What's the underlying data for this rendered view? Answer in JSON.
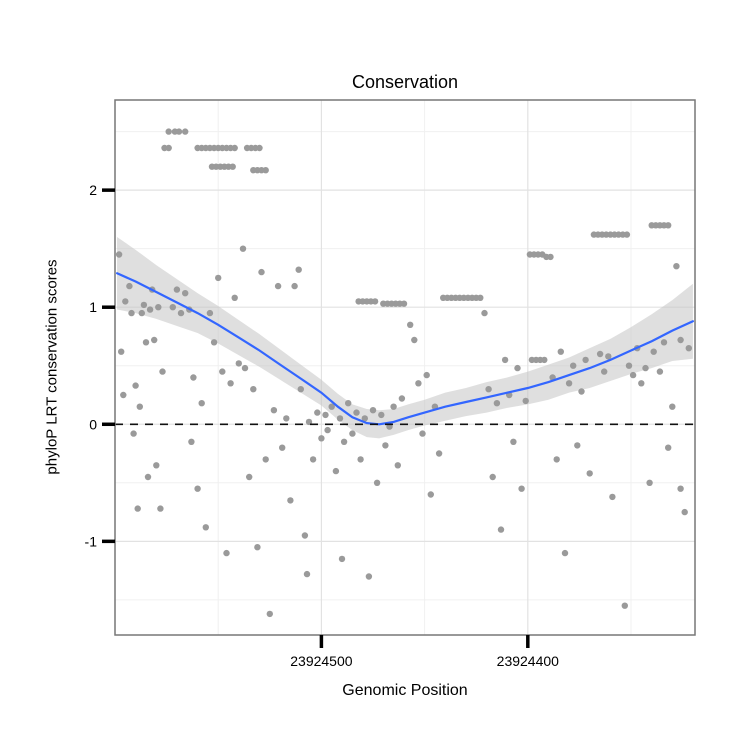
{
  "chart_data": {
    "type": "scatter",
    "title": "Conservation",
    "xlabel": "Genomic Position",
    "ylabel": "phyloP LRT conservation scores",
    "point_color": "#9a9a9a",
    "panel_border_color": "#777777",
    "background_color": "#ffffff",
    "x_axis": {
      "reversed": true,
      "domain": [
        23924319,
        23924600
      ],
      "ticks": [
        {
          "value": 23924500,
          "label": "23924500"
        },
        {
          "value": 23924400,
          "label": "23924400"
        }
      ],
      "minor": [
        23924550,
        23924450,
        23924350
      ]
    },
    "y_axis": {
      "domain": [
        -1.8,
        2.77
      ],
      "ticks": [
        {
          "value": -1,
          "label": "-1"
        },
        {
          "value": 0,
          "label": "0"
        },
        {
          "value": 1,
          "label": "1"
        },
        {
          "value": 2,
          "label": "2"
        }
      ],
      "minor": [
        -1.5,
        -0.5,
        0.5,
        1.5,
        2.5
      ]
    },
    "grid": {
      "major_color": "#e2e2e2",
      "minor_color": "#f0f0f0"
    },
    "reference_line": {
      "y": 0,
      "style": "dashed",
      "color": "#111111"
    },
    "smooth": {
      "line_color": "#3366FF",
      "ribbon_color": "#c4c4c4",
      "ribbon_opacity": 0.55,
      "x": [
        23924599,
        23924590,
        23924580,
        23924570,
        23924560,
        23924550,
        23924540,
        23924530,
        23924520,
        23924510,
        23924500,
        23924492,
        23924485,
        23924478,
        23924472,
        23924465,
        23924458,
        23924450,
        23924440,
        23924430,
        23924420,
        23924410,
        23924400,
        23924390,
        23924380,
        23924370,
        23924360,
        23924350,
        23924340,
        23924330,
        23924320
      ],
      "y": [
        1.29,
        1.22,
        1.13,
        1.04,
        0.95,
        0.85,
        0.74,
        0.63,
        0.51,
        0.39,
        0.27,
        0.15,
        0.06,
        0.01,
        0.0,
        0.02,
        0.06,
        0.1,
        0.15,
        0.19,
        0.23,
        0.27,
        0.31,
        0.36,
        0.42,
        0.48,
        0.55,
        0.63,
        0.71,
        0.8,
        0.88
      ],
      "upper": [
        1.6,
        1.49,
        1.36,
        1.24,
        1.12,
        1.01,
        0.89,
        0.77,
        0.64,
        0.51,
        0.38,
        0.26,
        0.17,
        0.13,
        0.12,
        0.13,
        0.17,
        0.21,
        0.27,
        0.31,
        0.36,
        0.4,
        0.45,
        0.51,
        0.57,
        0.65,
        0.73,
        0.83,
        0.94,
        1.06,
        1.2
      ],
      "lower": [
        0.98,
        0.95,
        0.9,
        0.84,
        0.78,
        0.69,
        0.59,
        0.49,
        0.38,
        0.27,
        0.16,
        0.04,
        -0.05,
        -0.11,
        -0.12,
        -0.09,
        -0.05,
        -0.01,
        0.03,
        0.07,
        0.1,
        0.14,
        0.17,
        0.21,
        0.27,
        0.31,
        0.37,
        0.43,
        0.48,
        0.54,
        0.56
      ]
    },
    "points": [
      [
        23924598,
        1.45
      ],
      [
        23924597,
        0.62
      ],
      [
        23924596,
        0.25
      ],
      [
        23924595,
        1.05
      ],
      [
        23924593,
        1.18
      ],
      [
        23924592,
        0.95
      ],
      [
        23924591,
        -0.08
      ],
      [
        23924590,
        0.33
      ],
      [
        23924589,
        -0.72
      ],
      [
        23924588,
        0.15
      ],
      [
        23924587,
        0.95
      ],
      [
        23924586,
        1.02
      ],
      [
        23924585,
        0.7
      ],
      [
        23924584,
        -0.45
      ],
      [
        23924583,
        0.98
      ],
      [
        23924582,
        1.15
      ],
      [
        23924581,
        0.72
      ],
      [
        23924580,
        -0.35
      ],
      [
        23924579,
        1.0
      ],
      [
        23924578,
        -0.72
      ],
      [
        23924577,
        0.45
      ],
      [
        23924574,
        2.5
      ],
      [
        23924571,
        2.5
      ],
      [
        23924569,
        2.5
      ],
      [
        23924566,
        2.5
      ],
      [
        23924576,
        2.36
      ],
      [
        23924574,
        2.36
      ],
      [
        23924560,
        2.36
      ],
      [
        23924558,
        2.36
      ],
      [
        23924556,
        2.36
      ],
      [
        23924554,
        2.36
      ],
      [
        23924552,
        2.36
      ],
      [
        23924550,
        2.36
      ],
      [
        23924548,
        2.36
      ],
      [
        23924546,
        2.36
      ],
      [
        23924544,
        2.36
      ],
      [
        23924542,
        2.36
      ],
      [
        23924536,
        2.36
      ],
      [
        23924534,
        2.36
      ],
      [
        23924532,
        2.36
      ],
      [
        23924530,
        2.36
      ],
      [
        23924553,
        2.2
      ],
      [
        23924551,
        2.2
      ],
      [
        23924549,
        2.2
      ],
      [
        23924547,
        2.2
      ],
      [
        23924545,
        2.2
      ],
      [
        23924543,
        2.2
      ],
      [
        23924533,
        2.17
      ],
      [
        23924531,
        2.17
      ],
      [
        23924529,
        2.17
      ],
      [
        23924527,
        2.17
      ],
      [
        23924572,
        1.0
      ],
      [
        23924570,
        1.15
      ],
      [
        23924568,
        0.95
      ],
      [
        23924566,
        1.12
      ],
      [
        23924564,
        0.98
      ],
      [
        23924563,
        -0.15
      ],
      [
        23924562,
        0.4
      ],
      [
        23924560,
        -0.55
      ],
      [
        23924558,
        0.18
      ],
      [
        23924556,
        -0.88
      ],
      [
        23924554,
        0.95
      ],
      [
        23924552,
        0.7
      ],
      [
        23924550,
        1.25
      ],
      [
        23924548,
        0.45
      ],
      [
        23924546,
        -1.1
      ],
      [
        23924544,
        0.35
      ],
      [
        23924542,
        1.08
      ],
      [
        23924540,
        0.52
      ],
      [
        23924538,
        1.5
      ],
      [
        23924537,
        0.48
      ],
      [
        23924535,
        -0.45
      ],
      [
        23924533,
        0.3
      ],
      [
        23924531,
        -1.05
      ],
      [
        23924529,
        1.3
      ],
      [
        23924527,
        -0.3
      ],
      [
        23924525,
        -1.62
      ],
      [
        23924523,
        0.12
      ],
      [
        23924521,
        1.18
      ],
      [
        23924519,
        -0.2
      ],
      [
        23924517,
        0.05
      ],
      [
        23924515,
        -0.65
      ],
      [
        23924513,
        1.18
      ],
      [
        23924511,
        1.32
      ],
      [
        23924510,
        0.3
      ],
      [
        23924508,
        -0.95
      ],
      [
        23924507,
        -1.28
      ],
      [
        23924506,
        0.02
      ],
      [
        23924504,
        -0.3
      ],
      [
        23924502,
        0.1
      ],
      [
        23924500,
        -0.12
      ],
      [
        23924498,
        0.08
      ],
      [
        23924497,
        -0.05
      ],
      [
        23924495,
        0.15
      ],
      [
        23924493,
        -0.4
      ],
      [
        23924491,
        0.05
      ],
      [
        23924490,
        -1.15
      ],
      [
        23924489,
        -0.15
      ],
      [
        23924487,
        0.18
      ],
      [
        23924485,
        -0.08
      ],
      [
        23924483,
        0.1
      ],
      [
        23924481,
        -0.3
      ],
      [
        23924479,
        0.05
      ],
      [
        23924477,
        -1.3
      ],
      [
        23924475,
        0.12
      ],
      [
        23924473,
        -0.5
      ],
      [
        23924471,
        0.08
      ],
      [
        23924469,
        -0.18
      ],
      [
        23924467,
        -0.02
      ],
      [
        23924465,
        0.15
      ],
      [
        23924463,
        -0.35
      ],
      [
        23924461,
        0.22
      ],
      [
        23924482,
        1.05
      ],
      [
        23924480,
        1.05
      ],
      [
        23924478,
        1.05
      ],
      [
        23924476,
        1.05
      ],
      [
        23924474,
        1.05
      ],
      [
        23924470,
        1.03
      ],
      [
        23924468,
        1.03
      ],
      [
        23924466,
        1.03
      ],
      [
        23924464,
        1.03
      ],
      [
        23924462,
        1.03
      ],
      [
        23924460,
        1.03
      ],
      [
        23924457,
        0.85
      ],
      [
        23924455,
        0.72
      ],
      [
        23924453,
        0.35
      ],
      [
        23924451,
        -0.08
      ],
      [
        23924449,
        0.42
      ],
      [
        23924447,
        -0.6
      ],
      [
        23924445,
        0.15
      ],
      [
        23924443,
        -0.25
      ],
      [
        23924441,
        1.08
      ],
      [
        23924439,
        1.08
      ],
      [
        23924437,
        1.08
      ],
      [
        23924435,
        1.08
      ],
      [
        23924433,
        1.08
      ],
      [
        23924431,
        1.08
      ],
      [
        23924429,
        1.08
      ],
      [
        23924427,
        1.08
      ],
      [
        23924425,
        1.08
      ],
      [
        23924423,
        1.08
      ],
      [
        23924421,
        0.95
      ],
      [
        23924419,
        0.3
      ],
      [
        23924417,
        -0.45
      ],
      [
        23924415,
        0.18
      ],
      [
        23924413,
        -0.9
      ],
      [
        23924411,
        0.55
      ],
      [
        23924409,
        0.25
      ],
      [
        23924407,
        -0.15
      ],
      [
        23924405,
        0.48
      ],
      [
        23924403,
        -0.55
      ],
      [
        23924401,
        0.2
      ],
      [
        23924399,
        1.45
      ],
      [
        23924397,
        1.45
      ],
      [
        23924395,
        1.45
      ],
      [
        23924393,
        1.45
      ],
      [
        23924391,
        1.43
      ],
      [
        23924389,
        1.43
      ],
      [
        23924398,
        0.55
      ],
      [
        23924396,
        0.55
      ],
      [
        23924394,
        0.55
      ],
      [
        23924392,
        0.55
      ],
      [
        23924388,
        0.4
      ],
      [
        23924386,
        -0.3
      ],
      [
        23924384,
        0.62
      ],
      [
        23924382,
        -1.1
      ],
      [
        23924380,
        0.35
      ],
      [
        23924378,
        0.5
      ],
      [
        23924376,
        -0.18
      ],
      [
        23924374,
        0.28
      ],
      [
        23924372,
        0.55
      ],
      [
        23924370,
        -0.42
      ],
      [
        23924368,
        1.62
      ],
      [
        23924366,
        1.62
      ],
      [
        23924364,
        1.62
      ],
      [
        23924362,
        1.62
      ],
      [
        23924360,
        1.62
      ],
      [
        23924358,
        1.62
      ],
      [
        23924356,
        1.62
      ],
      [
        23924354,
        1.62
      ],
      [
        23924352,
        1.62
      ],
      [
        23924365,
        0.6
      ],
      [
        23924363,
        0.45
      ],
      [
        23924361,
        0.58
      ],
      [
        23924359,
        -0.62
      ],
      [
        23924353,
        -1.55
      ],
      [
        23924351,
        0.5
      ],
      [
        23924349,
        0.42
      ],
      [
        23924347,
        0.65
      ],
      [
        23924345,
        0.35
      ],
      [
        23924343,
        0.48
      ],
      [
        23924341,
        -0.5
      ],
      [
        23924340,
        1.7
      ],
      [
        23924338,
        1.7
      ],
      [
        23924336,
        1.7
      ],
      [
        23924334,
        1.7
      ],
      [
        23924332,
        1.7
      ],
      [
        23924339,
        0.62
      ],
      [
        23924336,
        0.45
      ],
      [
        23924334,
        0.7
      ],
      [
        23924332,
        -0.2
      ],
      [
        23924330,
        0.15
      ],
      [
        23924328,
        1.35
      ],
      [
        23924326,
        0.72
      ],
      [
        23924326,
        -0.55
      ],
      [
        23924324,
        -0.75
      ],
      [
        23924322,
        0.65
      ]
    ]
  }
}
